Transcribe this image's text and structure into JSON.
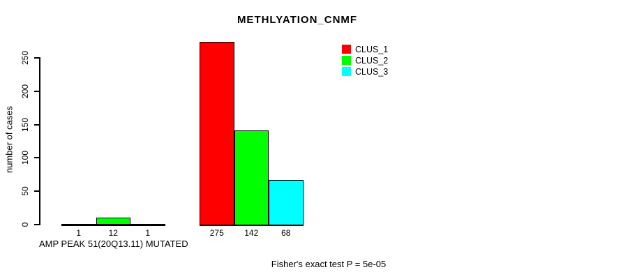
{
  "chart_data": {
    "type": "bar",
    "title": "METHLYATION_CNMF",
    "ylabel": "number of cases",
    "xlabel": "",
    "yticks": [
      0,
      50,
      100,
      150,
      200,
      250
    ],
    "ylim": [
      0,
      287
    ],
    "grid": false,
    "legend_position": "top-right",
    "legend": [
      {
        "label": "CLUS_1",
        "color": "#FF0000"
      },
      {
        "label": "CLUS_2",
        "color": "#00FF00"
      },
      {
        "label": "CLUS_3",
        "color": "#00FFFF"
      }
    ],
    "groups": [
      {
        "x_label": "AMP PEAK 51(20Q13.11) MUTATED",
        "values": [
          1,
          12,
          1
        ]
      },
      {
        "x_label": "",
        "values": [
          275,
          142,
          68
        ]
      }
    ],
    "annotation": "Fisher's exact test P = 5e-05"
  }
}
